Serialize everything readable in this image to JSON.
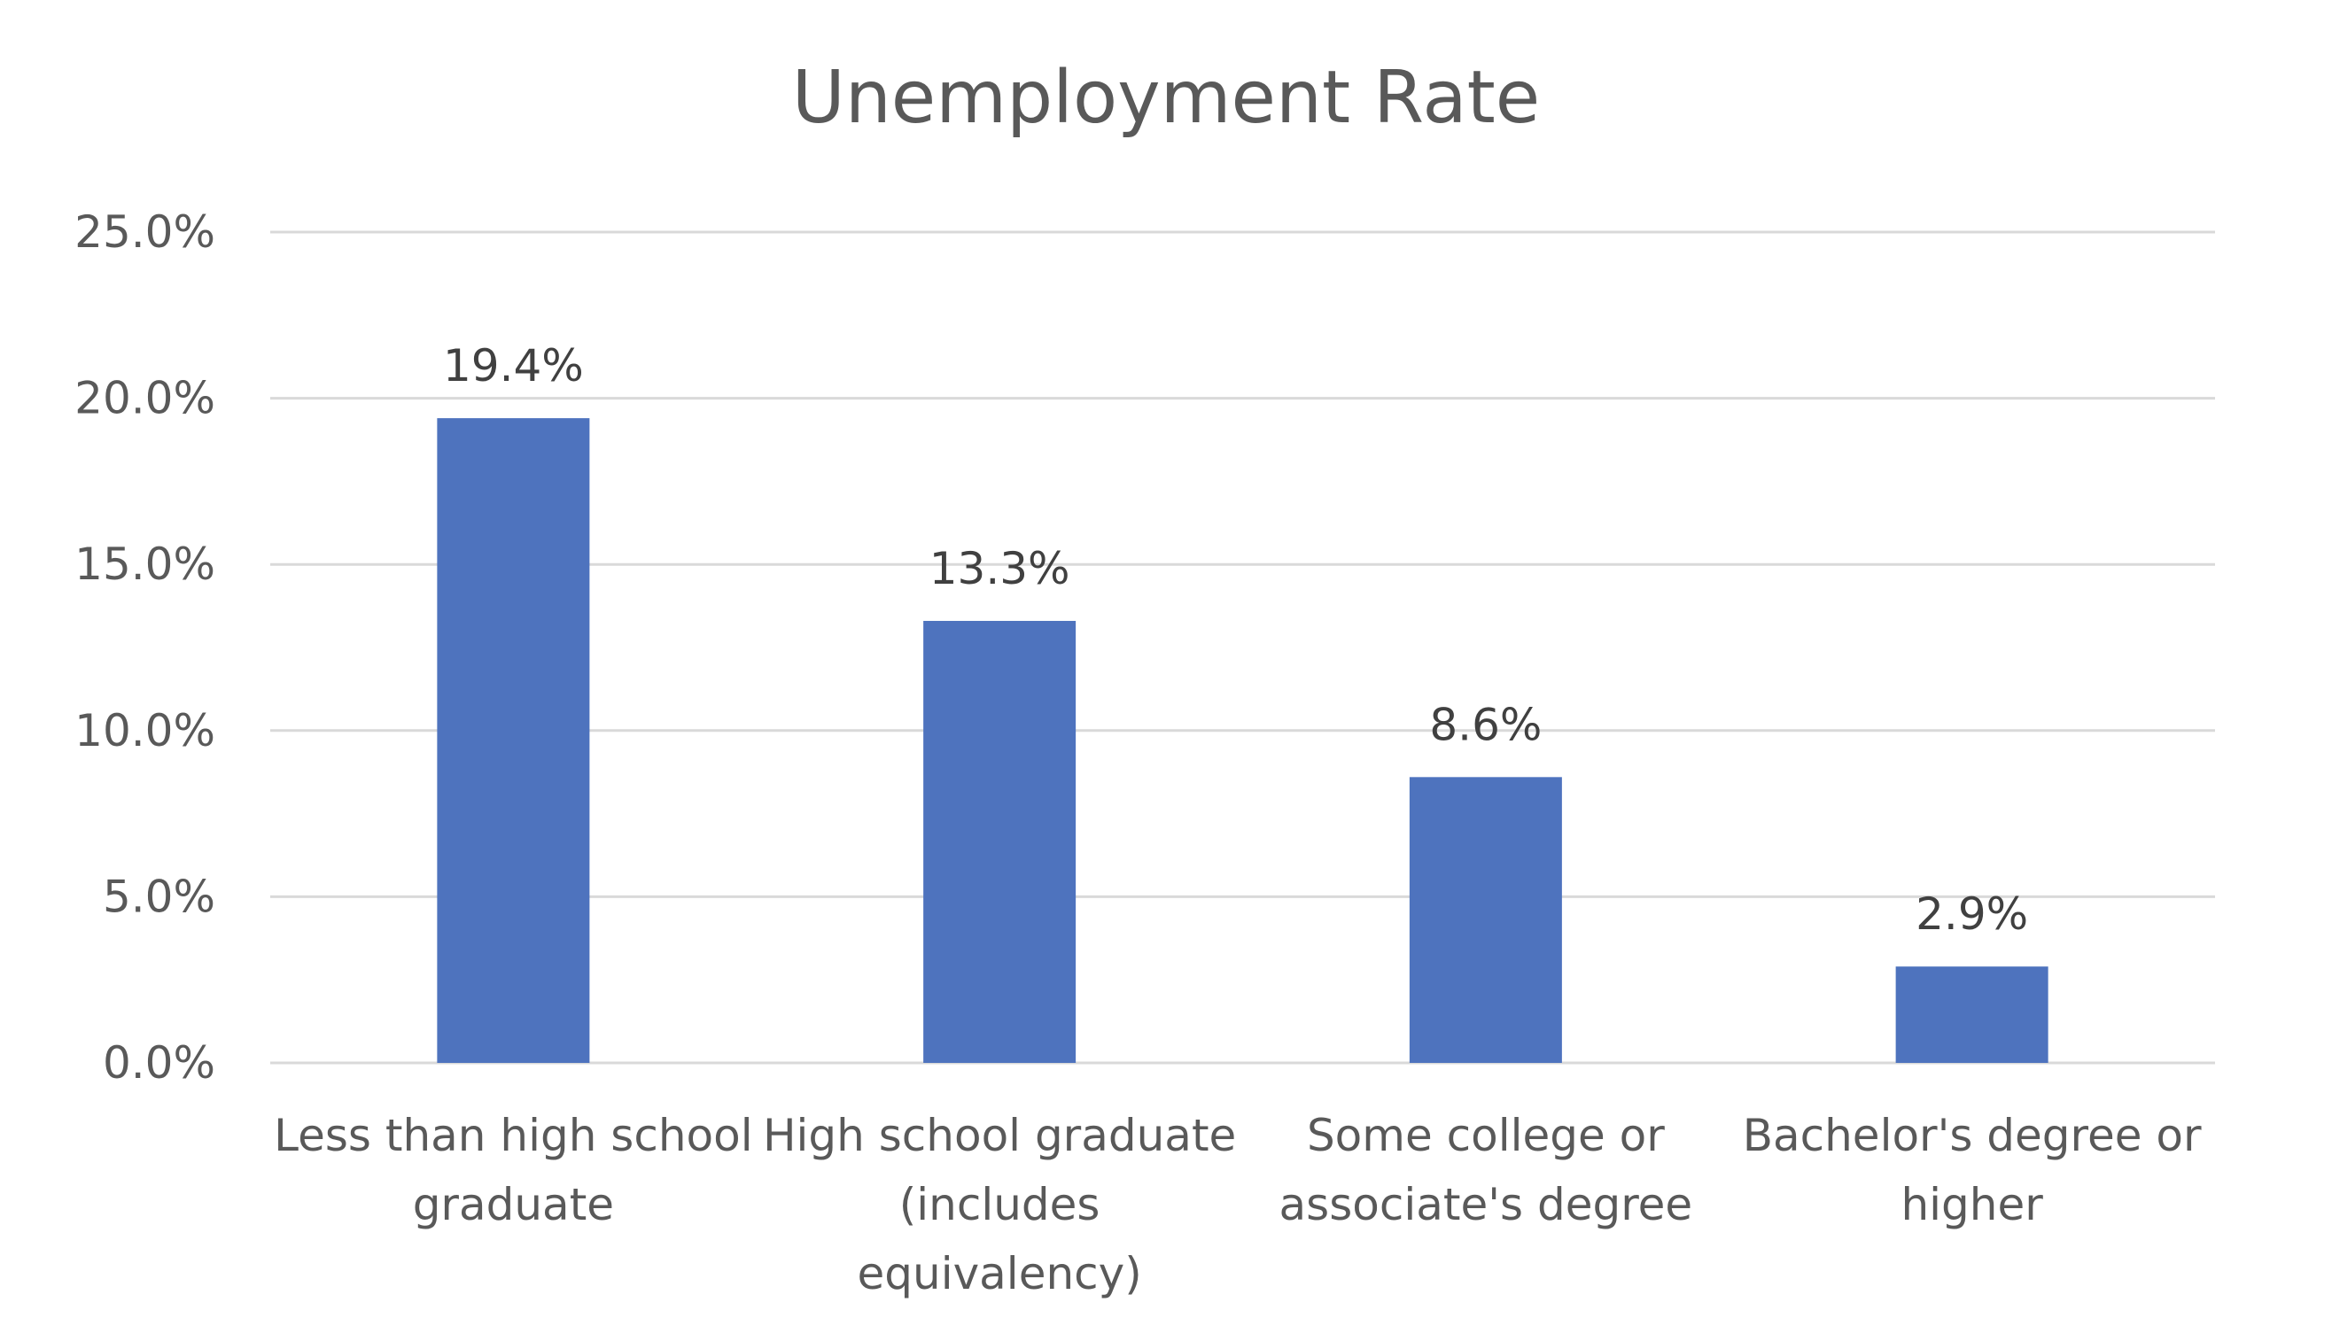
{
  "chart_data": {
    "type": "bar",
    "title": "Unemployment Rate",
    "xlabel": "",
    "ylabel": "",
    "categories": [
      [
        "Less than high school",
        "graduate"
      ],
      [
        "High school graduate",
        "(includes",
        "equivalency)"
      ],
      [
        "Some college or",
        "associate's degree"
      ],
      [
        "Bachelor's degree or",
        "higher"
      ]
    ],
    "values": [
      19.4,
      13.3,
      8.6,
      2.9
    ],
    "value_labels": [
      "19.4%",
      "13.3%",
      "8.6%",
      "2.9%"
    ],
    "ylim": [
      0,
      25
    ],
    "yticks": [
      0,
      5,
      10,
      15,
      20,
      25
    ],
    "ytick_labels": [
      "0.0%",
      "5.0%",
      "10.0%",
      "15.0%",
      "20.0%",
      "25.0%"
    ],
    "grid": true,
    "legend": "none",
    "colors": {
      "bar": "#4E73BE",
      "grid": "#D9D9D9",
      "axis": "#D9D9D9",
      "text": "#595959"
    }
  }
}
